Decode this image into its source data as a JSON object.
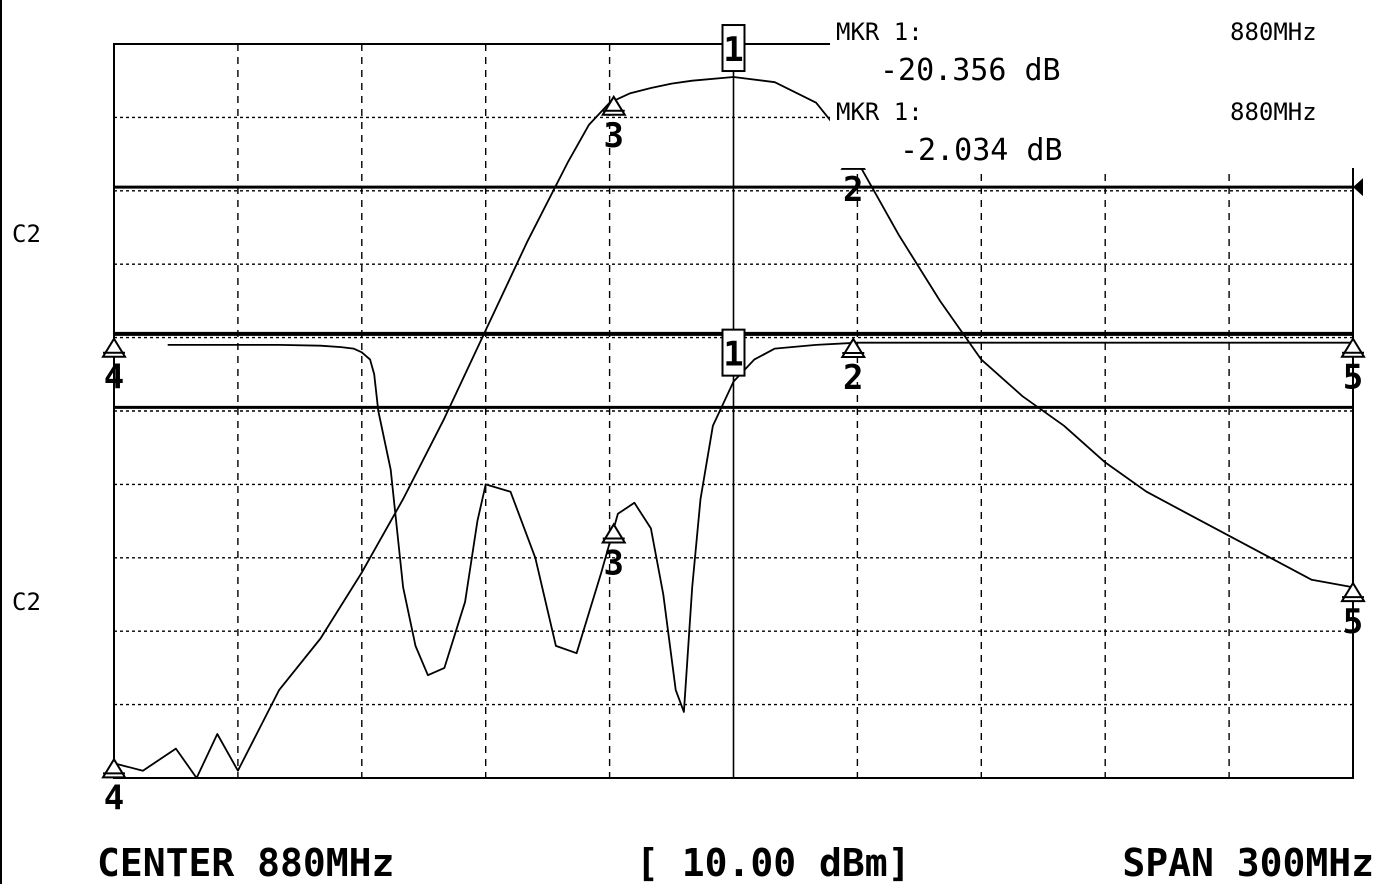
{
  "chart_data": {
    "type": "line",
    "instrument": "network analyzer",
    "center_label": "CENTER 880MHz",
    "span_label": "SPAN 300MHz",
    "ref_label": "[ 10.00 dBm]",
    "channel_labels": [
      "C2",
      "C2"
    ],
    "marker_readouts": [
      {
        "label": "MKR  1:",
        "freq": "880MHz",
        "value": "-20.356 dB"
      },
      {
        "label": "MKR  1:",
        "freq": "880MHz",
        "value": "-2.034 dB"
      }
    ],
    "x_range": [
      730,
      1030
    ],
    "x_unit": "MHz",
    "grid": true,
    "grid_divisions": {
      "x": 10,
      "y": 10
    },
    "series": [
      {
        "role": "transmission",
        "x": [
          730,
          737,
          745,
          750,
          755,
          760,
          770,
          780,
          790,
          800,
          810,
          820,
          830,
          840,
          845,
          850,
          855,
          860,
          865,
          870,
          880,
          890,
          900,
          905,
          910,
          915,
          920,
          930,
          940,
          950,
          960,
          970,
          980,
          990,
          1000,
          1010,
          1020,
          1030
        ],
        "y_level": [
          0.02,
          0.01,
          0.04,
          0.0,
          0.06,
          0.01,
          0.12,
          0.19,
          0.28,
          0.38,
          0.49,
          0.61,
          0.73,
          0.84,
          0.89,
          0.92,
          0.933,
          0.94,
          0.946,
          0.95,
          0.955,
          0.948,
          0.92,
          0.885,
          0.84,
          0.79,
          0.74,
          0.65,
          0.57,
          0.52,
          0.48,
          0.43,
          0.39,
          0.36,
          0.33,
          0.3,
          0.27,
          0.26
        ]
      },
      {
        "role": "reflection",
        "x": [
          743,
          760,
          770,
          780,
          785,
          788,
          790,
          792,
          793,
          794,
          797,
          800,
          803,
          806,
          810,
          815,
          818,
          820,
          826,
          832,
          837,
          842,
          848,
          852,
          856,
          860,
          863,
          866,
          868,
          870,
          872,
          875,
          880,
          885,
          890,
          900,
          910,
          1030
        ],
        "y_level": [
          0.59,
          0.59,
          0.59,
          0.589,
          0.587,
          0.585,
          0.58,
          0.57,
          0.55,
          0.5,
          0.42,
          0.26,
          0.18,
          0.14,
          0.15,
          0.24,
          0.35,
          0.4,
          0.39,
          0.3,
          0.18,
          0.17,
          0.28,
          0.36,
          0.375,
          0.34,
          0.25,
          0.12,
          0.09,
          0.26,
          0.38,
          0.48,
          0.54,
          0.57,
          0.585,
          0.59,
          0.593,
          0.593
        ]
      }
    ],
    "reference_levels": [
      0.805,
      0.605,
      0.505
    ],
    "markers": [
      {
        "id": "1",
        "x": 880,
        "trace": "transmission",
        "boxed": true
      },
      {
        "id": "2",
        "x": 909,
        "trace": "transmission"
      },
      {
        "id": "3",
        "x": 851,
        "trace": "transmission"
      },
      {
        "id": "4",
        "x": 730,
        "trace": "transmission"
      },
      {
        "id": "5",
        "x": 1030,
        "trace": "transmission"
      },
      {
        "id": "1",
        "x": 880,
        "trace": "reflection",
        "boxed": true
      },
      {
        "id": "2",
        "x": 909,
        "trace": "reflection"
      },
      {
        "id": "3",
        "x": 851,
        "trace": "reflection"
      },
      {
        "id": "4",
        "x": 730,
        "trace": "reflection"
      },
      {
        "id": "5",
        "x": 1030,
        "trace": "reflection"
      }
    ]
  }
}
